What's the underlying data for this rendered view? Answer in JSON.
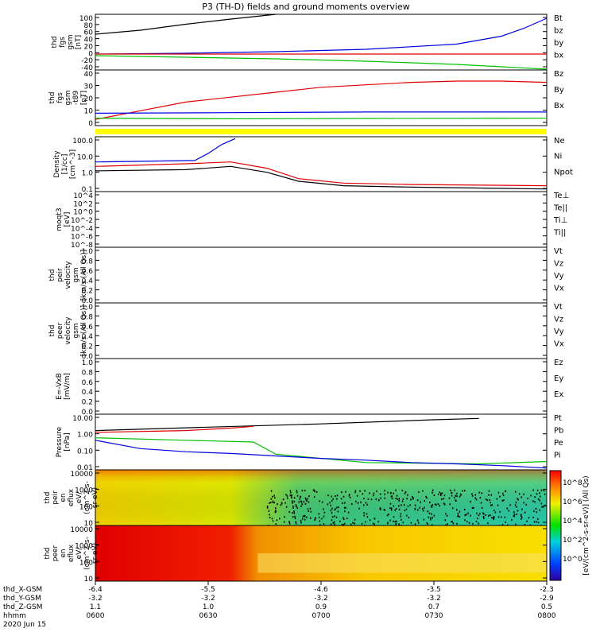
{
  "title": "P3 (TH-D) fields and ground moments overview",
  "colors": {
    "black": "#000000",
    "red": "#e00000",
    "green": "#00c000",
    "blue": "#0000e0",
    "yellow": "#ffff00"
  },
  "chart_data": [
    {
      "type": "line",
      "panel": "fgs",
      "ylabel": [
        "thd",
        "fgs",
        "gsm",
        "[nT]"
      ],
      "yticks": [
        "100",
        "80",
        "60",
        "40",
        "20",
        "0",
        "-20",
        "-40"
      ],
      "ylim": [
        -40,
        100
      ],
      "legend": [
        {
          "name": "Bt",
          "color": "black"
        },
        {
          "name": "bz",
          "color": "red"
        },
        {
          "name": "by",
          "color": "green"
        },
        {
          "name": "bx",
          "color": "blue"
        }
      ],
      "series": [
        {
          "name": "Bt",
          "color": "black",
          "x": [
            0,
            0.1,
            0.2,
            0.3,
            0.4
          ],
          "y": [
            50,
            60,
            75,
            88,
            100
          ]
        },
        {
          "name": "bx",
          "color": "blue",
          "x": [
            0,
            0.2,
            0.4,
            0.6,
            0.8,
            0.9,
            0.95,
            1.0
          ],
          "y": [
            0,
            2,
            6,
            12,
            25,
            45,
            65,
            90
          ]
        },
        {
          "name": "by",
          "color": "green",
          "x": [
            0,
            0.2,
            0.4,
            0.6,
            0.8,
            1.0
          ],
          "y": [
            -4,
            -8,
            -12,
            -18,
            -26,
            -38
          ]
        },
        {
          "name": "bz",
          "color": "red",
          "x": [
            0,
            1
          ],
          "y": [
            0,
            0
          ]
        }
      ]
    },
    {
      "type": "line",
      "panel": "fgs_t89",
      "ylabel": [
        "thd",
        "fgs",
        "gsm",
        "-t89",
        "[nT]"
      ],
      "yticks": [
        "40",
        "30",
        "20",
        "10",
        "0"
      ],
      "ylim": [
        -5,
        40
      ],
      "legend": [
        {
          "name": "Bz",
          "color": "red"
        },
        {
          "name": "By",
          "color": "green"
        },
        {
          "name": "Bx",
          "color": "blue"
        }
      ],
      "series": [
        {
          "name": "Bz",
          "color": "red",
          "x": [
            0,
            0.1,
            0.2,
            0.3,
            0.4,
            0.5,
            0.6,
            0.7,
            0.8,
            0.9,
            1.0
          ],
          "y": [
            0,
            7,
            14,
            18,
            22,
            26,
            28,
            30,
            31,
            31,
            30
          ]
        },
        {
          "name": "By",
          "color": "green",
          "x": [
            0,
            0.3,
            0.6,
            1.0
          ],
          "y": [
            1,
            0.5,
            0.8,
            1
          ]
        },
        {
          "name": "Bx",
          "color": "blue",
          "x": [
            0,
            0.3,
            0.6,
            1.0
          ],
          "y": [
            5,
            5.5,
            6,
            6
          ]
        }
      ]
    },
    {
      "type": "line",
      "panel": "density",
      "ylabel": [
        "Density",
        "[1/cc]",
        "[cm^-3]"
      ],
      "yticks": [
        "100.0",
        "10.0",
        "1.0",
        "0.1"
      ],
      "ylog": true,
      "ylim": [
        0.04,
        200
      ],
      "legend": [
        {
          "name": "Ne",
          "color": "red"
        },
        {
          "name": "Ni",
          "color": "black"
        },
        {
          "name": "Npot",
          "color": "blue"
        }
      ],
      "series": [
        {
          "name": "Npot",
          "color": "blue",
          "x": [
            0,
            0.22,
            0.25,
            0.28,
            0.31
          ],
          "y": [
            4,
            5,
            15,
            60,
            150
          ]
        },
        {
          "name": "Ne",
          "color": "red",
          "x": [
            0,
            0.2,
            0.3,
            0.38,
            0.45,
            0.55,
            0.7,
            1.0
          ],
          "y": [
            2,
            3,
            4,
            1.5,
            0.3,
            0.15,
            0.12,
            0.1
          ]
        },
        {
          "name": "Ni",
          "color": "black",
          "x": [
            0,
            0.2,
            0.3,
            0.38,
            0.45,
            0.55,
            0.7,
            1.0
          ],
          "y": [
            1,
            1.2,
            2,
            0.8,
            0.2,
            0.1,
            0.08,
            0.06
          ]
        }
      ]
    },
    {
      "type": "line",
      "panel": "temperature",
      "ylabel": [
        "moqt3",
        "[eV]"
      ],
      "yticks": [
        "10^4",
        "10^2",
        "10^0",
        "10^-2",
        "10^-4",
        "10^-6",
        "10^-8"
      ],
      "legend": [
        {
          "name": "Te⊥",
          "color": "red"
        },
        {
          "name": "Te||",
          "color": "black"
        },
        {
          "name": "Ti⊥",
          "color": "blue"
        },
        {
          "name": "Ti||",
          "color": "green"
        }
      ]
    },
    {
      "type": "line",
      "panel": "peir_velocity",
      "ylabel": [
        "thd",
        "peir",
        "velocity",
        "gsm",
        "[km/s (All Qs)]"
      ],
      "yticks": [
        "1.0",
        "0.8",
        "0.6",
        "0.4",
        "0.2",
        "0.0"
      ],
      "legend": [
        {
          "name": "Vt",
          "color": "black"
        },
        {
          "name": "Vz",
          "color": "red"
        },
        {
          "name": "Vy",
          "color": "green"
        },
        {
          "name": "Vx",
          "color": "blue"
        }
      ]
    },
    {
      "type": "line",
      "panel": "peer_velocity",
      "ylabel": [
        "thd",
        "peer",
        "velocity",
        "gsm",
        "[km/s (All Qs)]"
      ],
      "yticks": [
        "1.0",
        "0.8",
        "0.6",
        "0.4",
        "0.2",
        "0.0"
      ],
      "legend": [
        {
          "name": "Vt",
          "color": "black"
        },
        {
          "name": "Vz",
          "color": "red"
        },
        {
          "name": "Vy",
          "color": "green"
        },
        {
          "name": "Vx",
          "color": "blue"
        }
      ]
    },
    {
      "type": "line",
      "panel": "efield",
      "ylabel": [
        "E=-VxB",
        "[mV/m]"
      ],
      "yticks": [
        "1.0",
        "0.8",
        "0.6",
        "0.4",
        "0.2",
        "0.0"
      ],
      "legend": [
        {
          "name": "Ez",
          "color": "red"
        },
        {
          "name": "Ey",
          "color": "green"
        },
        {
          "name": "Ex",
          "color": "blue"
        }
      ]
    },
    {
      "type": "line",
      "panel": "pressure",
      "ylabel": [
        "Pressure",
        "[nPa]"
      ],
      "yticks": [
        "10.00",
        "1.00",
        "0.10",
        "0.01"
      ],
      "ylog": true,
      "ylim": [
        0.003,
        30
      ],
      "legend": [
        {
          "name": "Pt",
          "color": "black"
        },
        {
          "name": "Pb",
          "color": "red"
        },
        {
          "name": "Pe",
          "color": "green"
        },
        {
          "name": "Pi",
          "color": "blue"
        }
      ],
      "series": [
        {
          "name": "Pt",
          "color": "black",
          "x": [
            0,
            0.25,
            0.5,
            0.75,
            0.85
          ],
          "y": [
            2,
            3.5,
            6,
            12,
            15
          ]
        },
        {
          "name": "Pb",
          "color": "red",
          "x": [
            0,
            0.2,
            0.3,
            0.35
          ],
          "y": [
            1.5,
            2,
            3,
            4
          ]
        },
        {
          "name": "Pe",
          "color": "green",
          "x": [
            0,
            0.2,
            0.35,
            0.4,
            0.6,
            0.85,
            1.0
          ],
          "y": [
            0.6,
            0.4,
            0.3,
            0.04,
            0.01,
            0.008,
            0.012
          ]
        },
        {
          "name": "Pi",
          "color": "blue",
          "x": [
            0,
            0.1,
            0.2,
            0.3,
            0.4,
            0.5,
            0.6,
            0.7,
            0.8,
            0.9,
            1.0
          ],
          "y": [
            0.4,
            0.1,
            0.06,
            0.045,
            0.03,
            0.02,
            0.015,
            0.01,
            0.008,
            0.006,
            0.004
          ]
        }
      ]
    },
    {
      "type": "heatmap",
      "panel": "peir_eflux",
      "ylabel": [
        "thd",
        "peir",
        "en",
        "eflux",
        "eV/",
        "(cm^2-s-",
        "sr-eV)"
      ],
      "yticks": [
        "10000",
        "1000",
        "100",
        "10"
      ]
    },
    {
      "type": "heatmap",
      "panel": "peer_eflux",
      "ylabel": [
        "thd",
        "peer",
        "en",
        "eflux",
        "eV/",
        "(cm^2-s-",
        "sr-eV)"
      ],
      "yticks": [
        "10000",
        "1000",
        "100",
        "10"
      ]
    }
  ],
  "colorbar": {
    "label": "[eV/(cm^2-s-sr-eV)] (All Qs)",
    "ticks": [
      "10^8",
      "10^6",
      "10^4",
      "10^2",
      "10^0"
    ]
  },
  "xaxis": {
    "rows": [
      {
        "label": "thd_X-GSM",
        "values": [
          "-6.4",
          "-5.5",
          "-4.6",
          "-3.5",
          "-2.3"
        ]
      },
      {
        "label": "thd_Y-GSM",
        "values": [
          "-3.2",
          "-3.2",
          "-3.2",
          "-3.2",
          "-2.9"
        ]
      },
      {
        "label": "thd_Z-GSM",
        "values": [
          "1.1",
          "1.0",
          "0.9",
          "0.7",
          "0.5"
        ]
      },
      {
        "label": "hhmm",
        "values": [
          "0600",
          "0630",
          "0700",
          "0730",
          "0800"
        ]
      }
    ],
    "date": "2020 Jun 15"
  }
}
